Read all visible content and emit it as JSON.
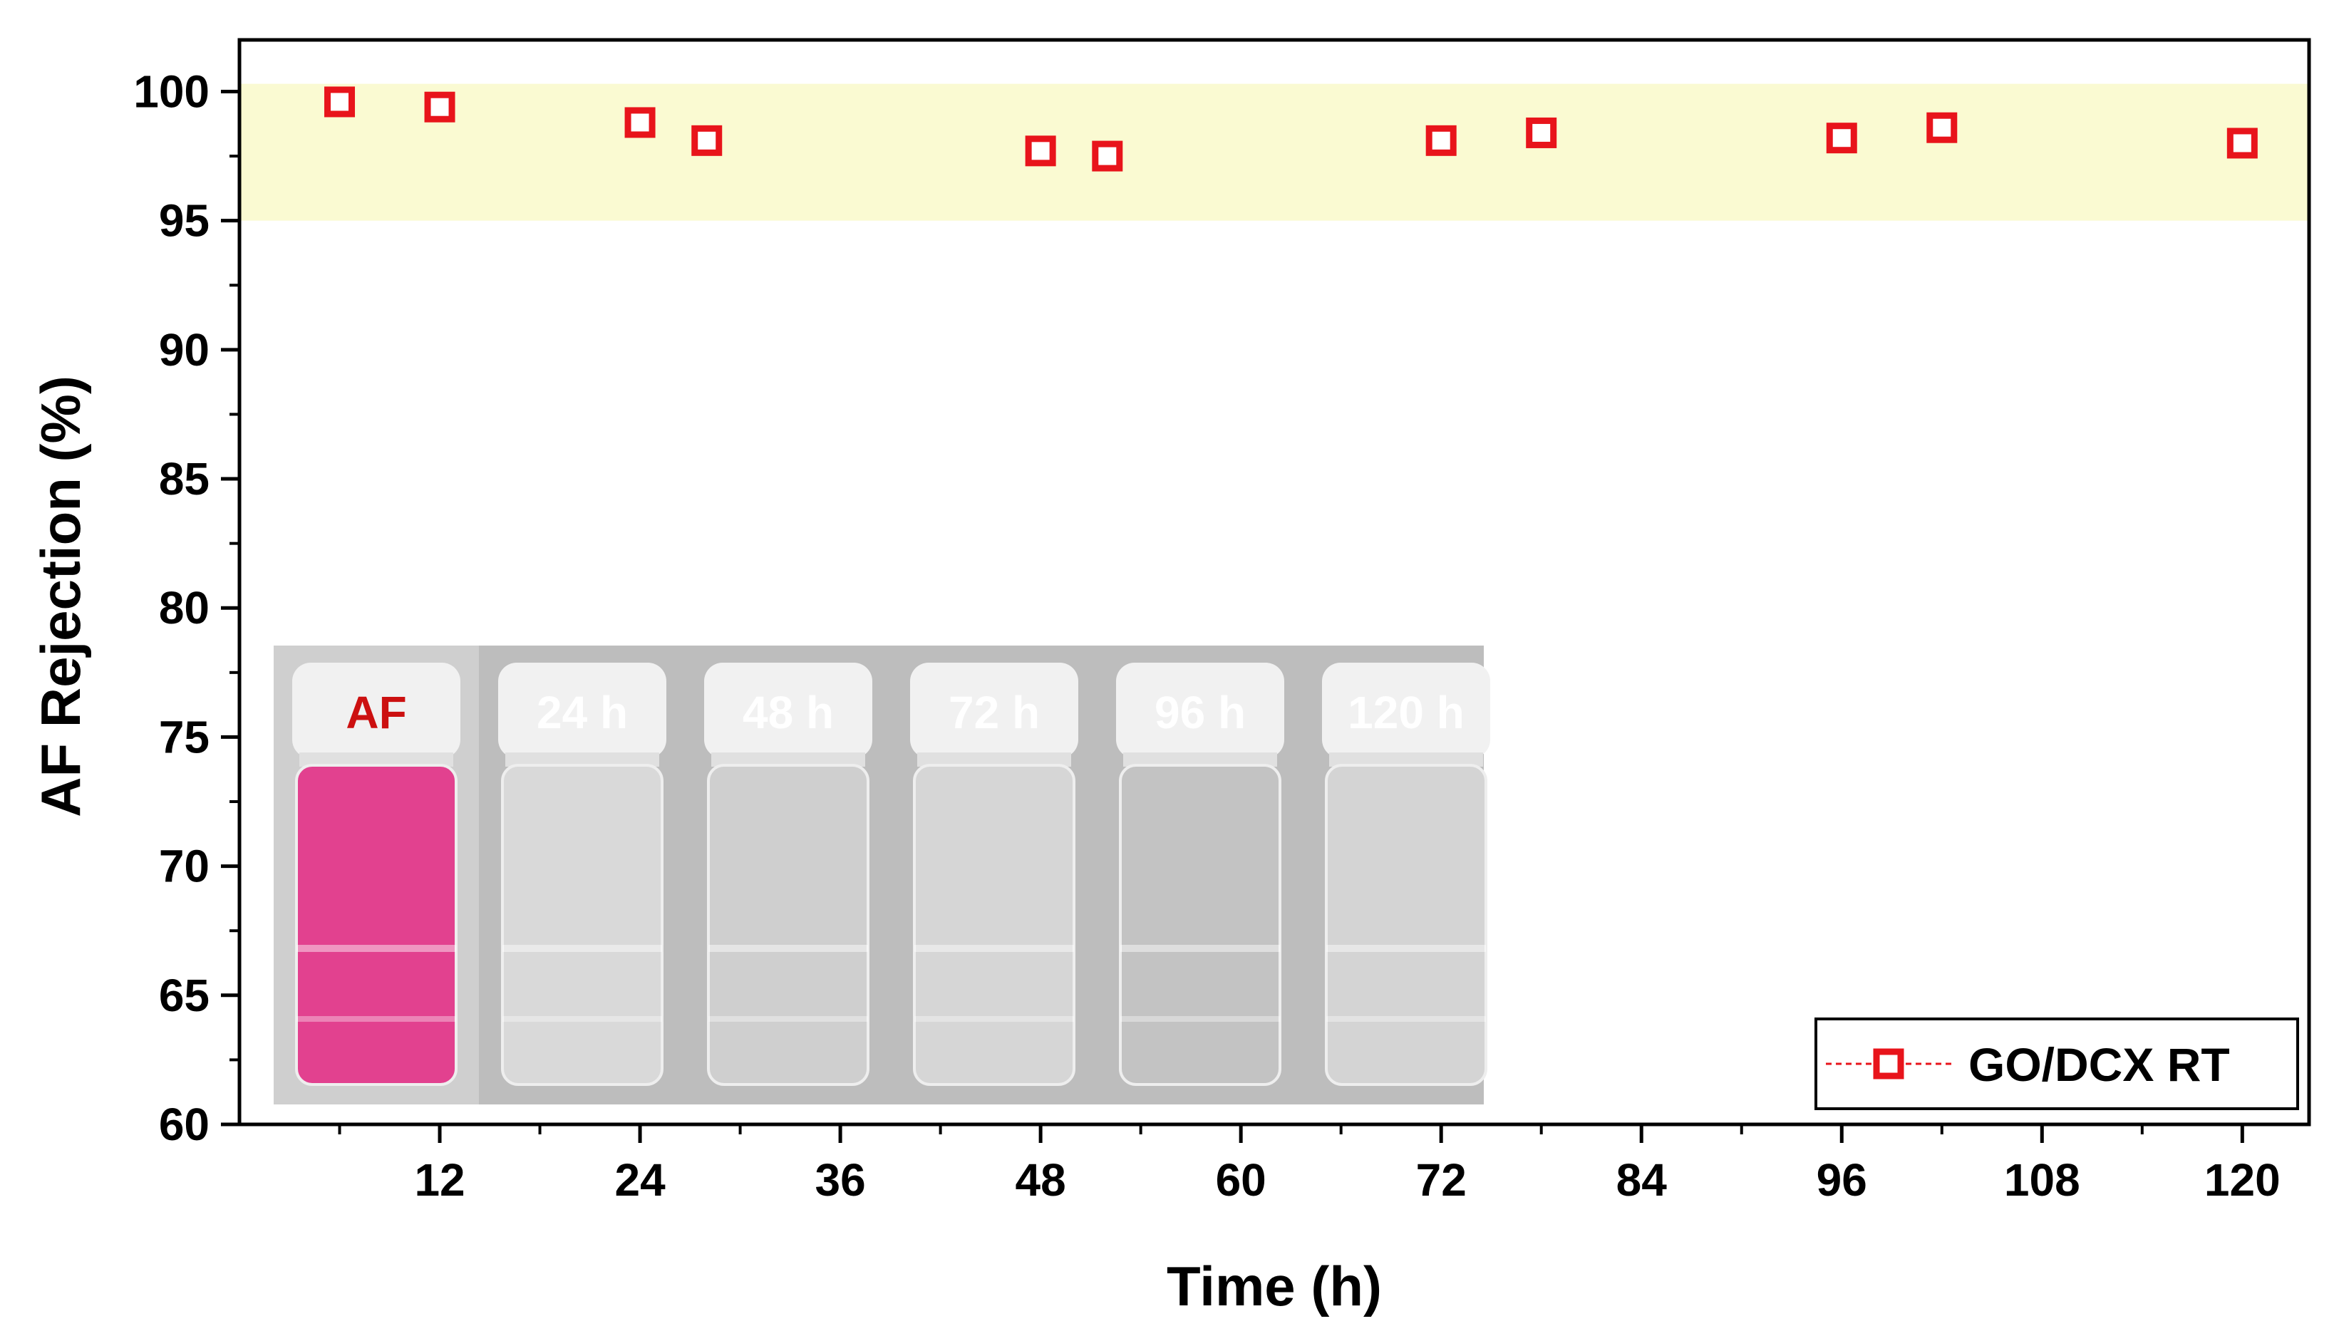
{
  "chart_data": {
    "type": "scatter",
    "title": "",
    "xlabel": "Time (h)",
    "ylabel": "AF Rejection (%)",
    "xlim": [
      0,
      124
    ],
    "ylim": [
      60,
      102
    ],
    "xticks": [
      12,
      24,
      36,
      48,
      60,
      72,
      84,
      96,
      108,
      120
    ],
    "yticks": [
      60,
      65,
      70,
      75,
      80,
      85,
      90,
      95,
      100
    ],
    "grid": false,
    "legend_position": "bottom-right",
    "highlight_band": {
      "ymin": 95,
      "ymax": 100.3,
      "color": "#fafad2"
    },
    "series": [
      {
        "name": "GO/DCX RT",
        "marker": "open-square",
        "line": "dashed",
        "color": "#e8141b",
        "x": [
          6,
          12,
          24,
          28,
          48,
          52,
          72,
          78,
          96,
          102,
          120
        ],
        "y": [
          99.6,
          99.4,
          98.8,
          98.1,
          97.7,
          97.5,
          98.1,
          98.4,
          98.2,
          98.6,
          98.0
        ]
      }
    ],
    "inset": {
      "vials": [
        {
          "label": "AF",
          "label_color": "#cc1010",
          "liquid": "#e2418f"
        },
        {
          "label": "24 h",
          "label_color": "#ffffff",
          "liquid": "#d9d9d9"
        },
        {
          "label": "48 h",
          "label_color": "#ffffff",
          "liquid": "#cfcfcf"
        },
        {
          "label": "72 h",
          "label_color": "#ffffff",
          "liquid": "#d6d6d6"
        },
        {
          "label": "96 h",
          "label_color": "#ffffff",
          "liquid": "#c3c3c3"
        },
        {
          "label": "120 h",
          "label_color": "#ffffff",
          "liquid": "#d4d4d4"
        }
      ]
    }
  }
}
